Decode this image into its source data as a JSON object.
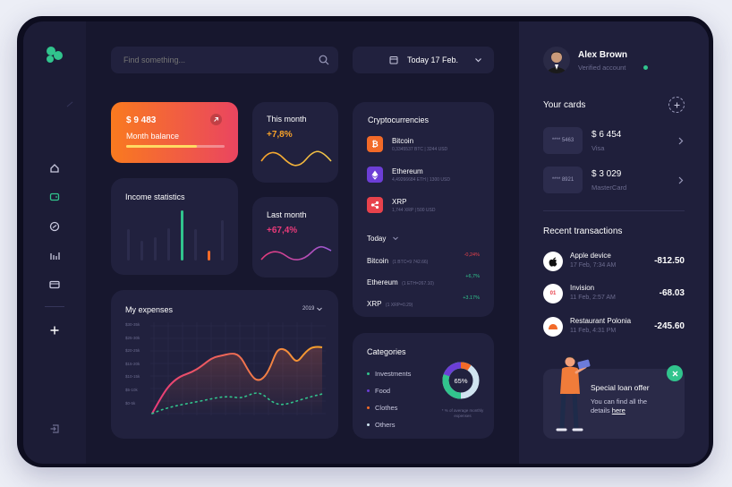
{
  "search": {
    "placeholder": "Find something..."
  },
  "date_picker": {
    "label": "Today 17 Feb."
  },
  "balance": {
    "amount": "$ 9 483",
    "label": "Month balance",
    "progress": 0.72
  },
  "this_month": {
    "title": "This month",
    "change": "+7,8%"
  },
  "last_month": {
    "title": "Last month",
    "change": "+67,4%"
  },
  "income": {
    "title": "Income statistics",
    "bars": [
      0.62,
      0.4,
      0.46,
      0.65,
      1.0,
      0.62,
      0.2,
      0.8
    ],
    "bar_colors": [
      "#2c2c4d",
      "#2c2c4d",
      "#2c2c4d",
      "#2c2c4d",
      "#31c48d",
      "#2c2c4d",
      "#f26a28",
      "#2c2c4d"
    ]
  },
  "crypto": {
    "title": "Cryptocurrencies",
    "items": [
      {
        "name": "Bitcoin",
        "sub": "0,3345537 BTC | 3244 USD",
        "color": "#f26a28"
      },
      {
        "name": "Ethereum",
        "sub": "4,49266684 ETH | 1300 USD",
        "color": "#6c3ed6"
      },
      {
        "name": "XRP",
        "sub": "1,744 XRP | 500 USD",
        "color": "#e8424c"
      }
    ],
    "today_label": "Today",
    "today": [
      {
        "name": "Bitcoin",
        "sub": "(1 BTC=9 742.66)",
        "change": "-0,24%",
        "color": "#e8424c"
      },
      {
        "name": "Ethereum",
        "sub": "(1 ETH=267.10)",
        "change": "+6,7%",
        "color": "#31c48d"
      },
      {
        "name": "XRP",
        "sub": "(1 XRP=0.29)",
        "change": "+3.17%",
        "color": "#31c48d"
      }
    ]
  },
  "expenses": {
    "title": "My expenses",
    "year": "2019",
    "y_ticks": [
      "$30-35k",
      "$25-30k",
      "$20-25k",
      "$15-20k",
      "$10-15k",
      "$5-10k",
      "$0-5k"
    ]
  },
  "categories": {
    "title": "Categories",
    "items": [
      {
        "label": "Investments",
        "color": "#31c48d"
      },
      {
        "label": "Food",
        "color": "#6c3ed6"
      },
      {
        "label": "Clothes",
        "color": "#f26a28"
      },
      {
        "label": "Others",
        "color": "#d0e4f0"
      }
    ],
    "donut_value": "65%",
    "note": "* % of average monthly expenses"
  },
  "profile": {
    "name": "Alex Brown",
    "status": "Verified account"
  },
  "cards": {
    "title": "Your cards",
    "items": [
      {
        "number": "**** 5463",
        "amount": "$ 6 454",
        "type": "Visa"
      },
      {
        "number": "**** 8921",
        "amount": "$ 3 029",
        "type": "MasterCard"
      }
    ]
  },
  "transactions": {
    "title": "Recent transactions",
    "items": [
      {
        "name": "Apple device",
        "date": "17 Feb, 7:34 AM",
        "amount": "-812.50"
      },
      {
        "name": "Invision",
        "date": "11 Feb, 2:57 AM",
        "amount": "-68.03"
      },
      {
        "name": "Restaurant Polonia",
        "date": "11 Feb, 4:31 PM",
        "amount": "-245.60"
      }
    ]
  },
  "loan": {
    "title": "Special loan offer",
    "text": "You can find all the details",
    "link": "here"
  },
  "colors": {
    "accent_green": "#31c48d",
    "accent_orange": "#f26a28",
    "accent_pink": "#e83a7a"
  }
}
